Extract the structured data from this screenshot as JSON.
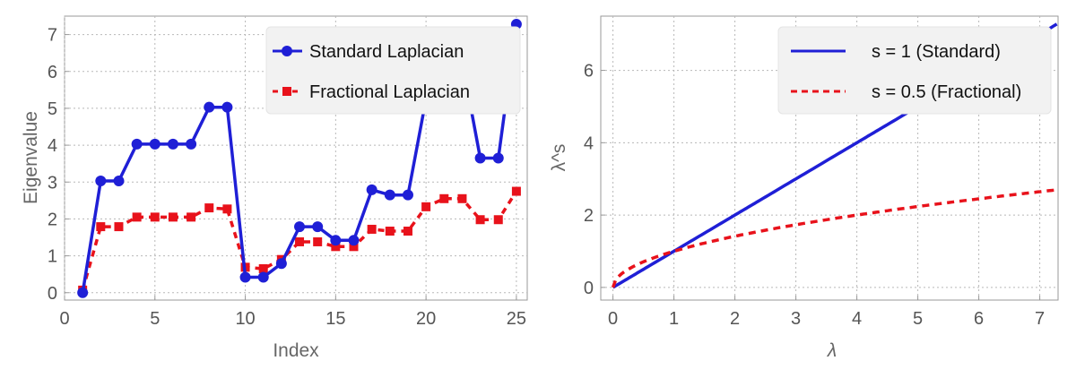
{
  "chart_data": [
    {
      "type": "line",
      "xlabel": "Index",
      "ylabel": "Eigenvalue",
      "xlim": [
        0,
        25.6
      ],
      "ylim": [
        -0.2,
        7.5
      ],
      "xticks": [
        0,
        5,
        10,
        15,
        20,
        25
      ],
      "yticks": [
        0,
        1,
        2,
        3,
        4,
        5,
        6,
        7
      ],
      "grid": true,
      "legend_position": "top-right",
      "x": [
        1,
        2,
        3,
        4,
        5,
        6,
        7,
        8,
        9,
        10,
        11,
        12,
        13,
        14,
        15,
        16,
        17,
        18,
        19,
        20,
        21,
        22,
        23,
        24,
        25
      ],
      "series": [
        {
          "name": "Standard Laplacian",
          "color": "#1f1fd6",
          "marker": "circle",
          "line_style": "solid",
          "values": [
            0.0,
            3.03,
            3.03,
            4.03,
            4.03,
            4.03,
            4.03,
            5.03,
            5.03,
            0.42,
            0.42,
            0.79,
            1.79,
            1.79,
            1.42,
            1.42,
            2.79,
            2.65,
            2.65,
            5.25,
            6.28,
            6.28,
            3.65,
            3.65,
            7.28
          ]
        },
        {
          "name": "Fractional Laplacian",
          "color": "#e8121b",
          "marker": "square",
          "line_style": "dashed",
          "values": [
            0.07,
            1.79,
            1.79,
            2.05,
            2.05,
            2.05,
            2.05,
            2.3,
            2.27,
            0.69,
            0.65,
            0.9,
            1.38,
            1.38,
            1.25,
            1.25,
            1.72,
            1.67,
            1.67,
            2.33,
            2.55,
            2.55,
            1.98,
            1.98,
            2.75
          ]
        }
      ]
    },
    {
      "type": "line",
      "xlabel": "λ",
      "ylabel": "λ^s",
      "xlim": [
        -0.2,
        7.3
      ],
      "ylim": [
        -0.35,
        7.5
      ],
      "xticks": [
        0,
        1,
        2,
        3,
        4,
        5,
        6,
        7
      ],
      "yticks": [
        0,
        2,
        4,
        6
      ],
      "grid": true,
      "legend_position": "top-right",
      "lambda_max": 7.28,
      "series": [
        {
          "name": "s = 1 (Standard)",
          "exponent": 1,
          "color": "#1f1fd6",
          "line_style": "solid"
        },
        {
          "name": "s = 0.5 (Fractional)",
          "exponent": 0.5,
          "color": "#e8121b",
          "line_style": "dashed"
        }
      ]
    }
  ]
}
